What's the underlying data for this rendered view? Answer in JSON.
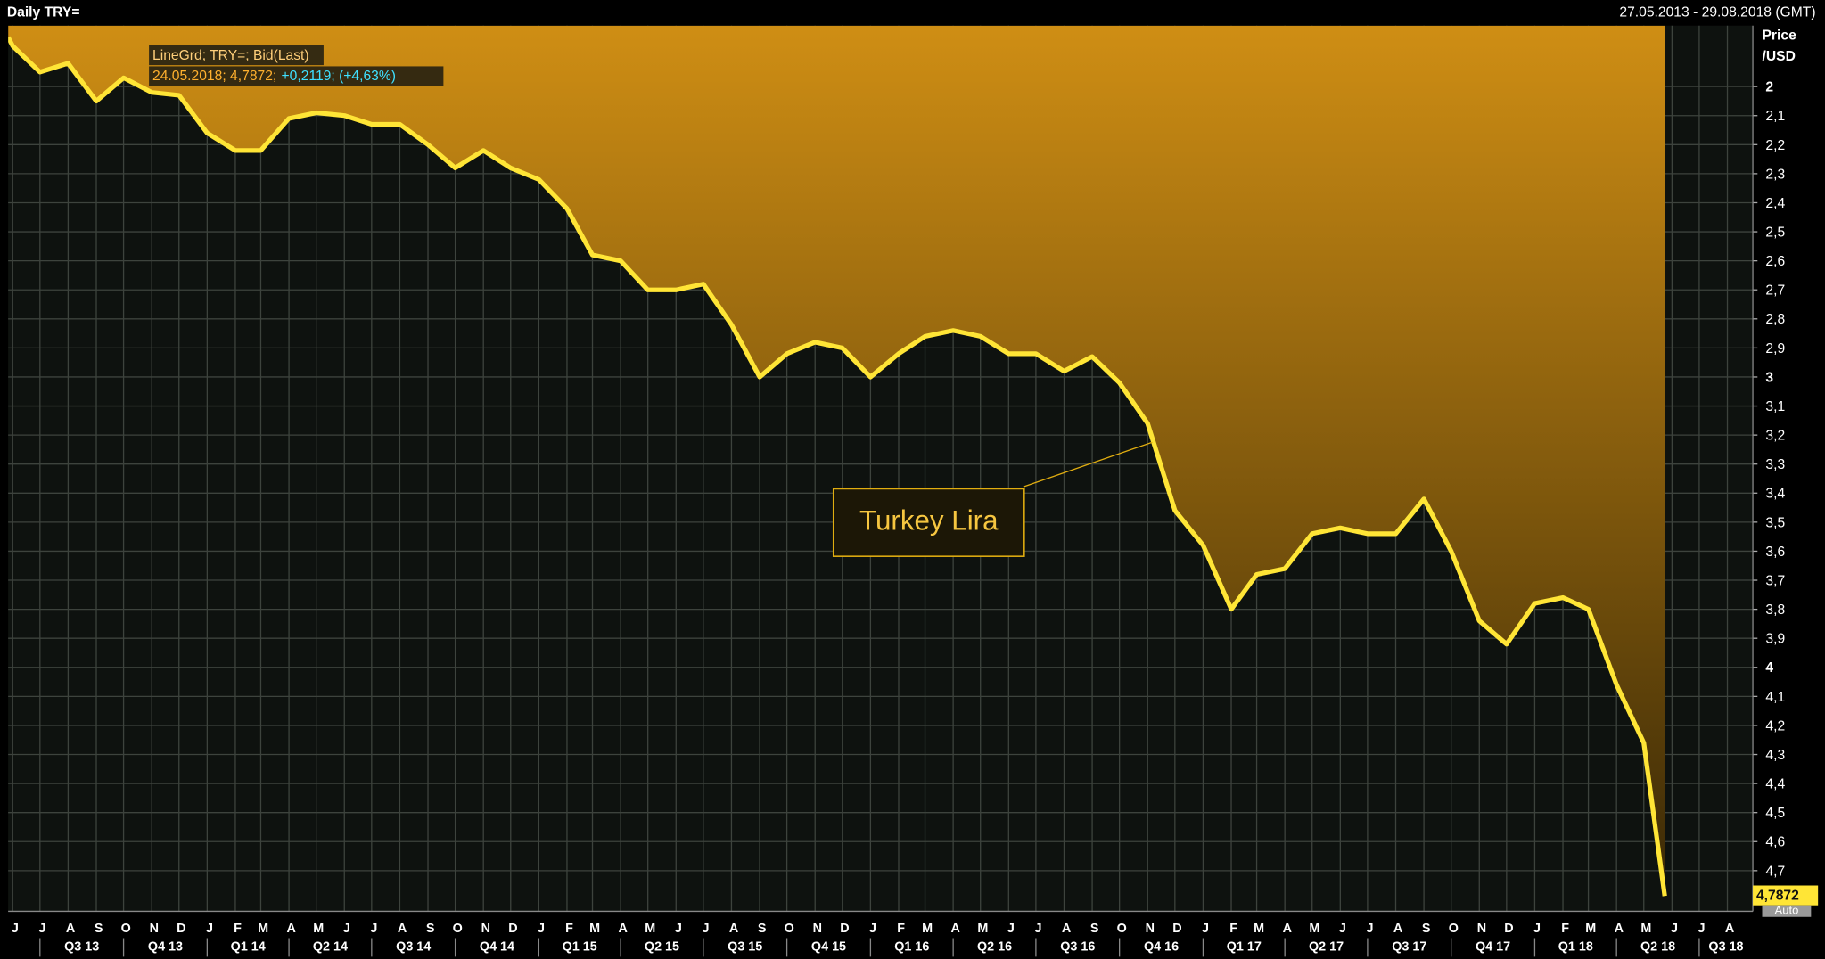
{
  "header": {
    "title": "Daily TRY=",
    "range": "27.05.2013 - 29.08.2018 (GMT)"
  },
  "chart_data": {
    "type": "line",
    "y_axis_title": [
      "Price",
      "/USD"
    ],
    "legend": {
      "series_line": "LineGrd; TRY=; Bid(Last)",
      "last_text": "24.05.2018; 4,7872;",
      "change_text": "+0,2119; (+4,63%)"
    },
    "annotation": "Turkey Lira",
    "last_value_label": "4,7872",
    "axis_mode": "Auto",
    "xlim": [
      "2013-05-27",
      "2018-08-29"
    ],
    "month_labels": [
      "J",
      "J",
      "A",
      "S",
      "O",
      "N",
      "D",
      "J",
      "F",
      "M",
      "A",
      "M",
      "J",
      "J",
      "A",
      "S",
      "O",
      "N",
      "D",
      "J",
      "F",
      "M",
      "A",
      "M",
      "J",
      "J",
      "A",
      "S",
      "O",
      "N",
      "D",
      "J",
      "F",
      "M",
      "A",
      "M",
      "J",
      "J",
      "A",
      "S",
      "O",
      "N",
      "D",
      "J",
      "F",
      "M",
      "A",
      "M",
      "J",
      "J",
      "A",
      "S",
      "O",
      "N",
      "D",
      "J",
      "F",
      "M",
      "A",
      "M",
      "J",
      "J",
      "A"
    ],
    "quarter_labels": [
      "Q3 13",
      "Q4 13",
      "Q1 14",
      "Q2 14",
      "Q3 14",
      "Q4 14",
      "Q1 15",
      "Q2 15",
      "Q3 15",
      "Q4 15",
      "Q1 16",
      "Q2 16",
      "Q3 16",
      "Q4 16",
      "Q1 17",
      "Q2 17",
      "Q3 17",
      "Q4 17",
      "Q1 18",
      "Q2 18",
      "Q3 18"
    ],
    "ylim": [
      1.79,
      4.84
    ],
    "y_reversed": true,
    "yticks": [
      2,
      {
        "value": 2.1,
        "label": "2,1"
      },
      {
        "value": 2.2,
        "label": "2,2"
      },
      {
        "value": 2.3,
        "label": "2,3"
      },
      {
        "value": 2.4,
        "label": "2,4"
      },
      {
        "value": 2.5,
        "label": "2,5"
      },
      {
        "value": 2.6,
        "label": "2,6"
      },
      {
        "value": 2.7,
        "label": "2,7"
      },
      {
        "value": 2.8,
        "label": "2,8"
      },
      {
        "value": 2.9,
        "label": "2,9"
      },
      3,
      {
        "value": 3.1,
        "label": "3,1"
      },
      {
        "value": 3.2,
        "label": "3,2"
      },
      {
        "value": 3.3,
        "label": "3,3"
      },
      {
        "value": 3.4,
        "label": "3,4"
      },
      {
        "value": 3.5,
        "label": "3,5"
      },
      {
        "value": 3.6,
        "label": "3,6"
      },
      {
        "value": 3.7,
        "label": "3,7"
      },
      {
        "value": 3.8,
        "label": "3,8"
      },
      {
        "value": 3.9,
        "label": "3,9"
      },
      4,
      {
        "value": 4.1,
        "label": "4,1"
      },
      {
        "value": 4.2,
        "label": "4,2"
      },
      {
        "value": 4.3,
        "label": "4,3"
      },
      {
        "value": 4.4,
        "label": "4,4"
      },
      {
        "value": 4.5,
        "label": "4,5"
      },
      {
        "value": 4.6,
        "label": "4,6"
      },
      {
        "value": 4.7,
        "label": "4,7"
      }
    ],
    "grid": true,
    "area_fill": [
      "#cf8e14",
      "#3a2906"
    ],
    "series": [
      {
        "color": "#ffe536",
        "x": [
          "2013-05-27",
          "2013-06",
          "2013-07",
          "2013-08",
          "2013-09",
          "2013-10",
          "2013-11",
          "2013-12",
          "2014-01",
          "2014-02",
          "2014-03",
          "2014-04",
          "2014-05",
          "2014-06",
          "2014-07",
          "2014-08",
          "2014-09",
          "2014-10",
          "2014-11",
          "2014-12",
          "2015-01",
          "2015-02",
          "2015-03",
          "2015-04",
          "2015-05",
          "2015-06",
          "2015-07",
          "2015-08",
          "2015-09",
          "2015-10",
          "2015-11",
          "2015-12",
          "2016-01",
          "2016-02",
          "2016-03",
          "2016-04",
          "2016-05",
          "2016-06",
          "2016-07",
          "2016-08",
          "2016-09",
          "2016-10",
          "2016-11",
          "2016-12",
          "2017-01",
          "2017-02",
          "2017-03",
          "2017-04",
          "2017-05",
          "2017-06",
          "2017-07",
          "2017-08",
          "2017-09",
          "2017-10",
          "2017-11",
          "2017-12",
          "2018-01",
          "2018-02",
          "2018-03",
          "2018-04",
          "2018-05",
          "2018-05-24"
        ],
        "values": [
          1.83,
          1.86,
          1.95,
          1.92,
          2.05,
          1.97,
          2.02,
          2.03,
          2.16,
          2.22,
          2.22,
          2.11,
          2.09,
          2.1,
          2.13,
          2.13,
          2.2,
          2.28,
          2.22,
          2.28,
          2.32,
          2.42,
          2.58,
          2.6,
          2.7,
          2.7,
          2.68,
          2.82,
          3.0,
          2.92,
          2.88,
          2.9,
          3.0,
          2.92,
          2.86,
          2.84,
          2.86,
          2.92,
          2.92,
          2.98,
          2.93,
          3.02,
          3.16,
          3.46,
          3.58,
          3.8,
          3.68,
          3.66,
          3.54,
          3.52,
          3.54,
          3.54,
          3.42,
          3.6,
          3.84,
          3.92,
          3.78,
          3.76,
          3.8,
          4.06,
          4.26,
          4.7872
        ]
      }
    ]
  }
}
